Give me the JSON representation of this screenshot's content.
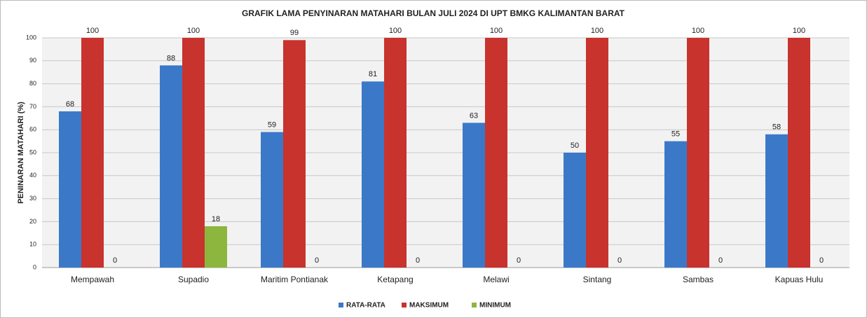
{
  "chart_data": {
    "type": "bar",
    "title": "GRAFIK LAMA PENYINARAN MATAHARI BULAN JULI 2024 DI UPT BMKG KALIMANTAN BARAT",
    "y_label": "PENINARAN MATAHARI (%)",
    "categories": [
      "Mempawah",
      "Supadio",
      "Maritim Pontianak",
      "Ketapang",
      "Melawi",
      "Sintang",
      "Sambas",
      "Kapuas Hulu"
    ],
    "series": [
      {
        "name": "RATA-RATA",
        "color": "#3b79c8",
        "values": [
          68,
          88,
          59,
          81,
          63,
          50,
          55,
          58
        ]
      },
      {
        "name": "MAKSIMUM",
        "color": "#c8332e",
        "values": [
          100,
          100,
          99,
          100,
          100,
          100,
          100,
          100
        ]
      },
      {
        "name": "MINIMUM",
        "color": "#8db63f",
        "values": [
          0,
          18,
          0,
          0,
          0,
          0,
          0,
          0
        ]
      }
    ],
    "ylim": [
      0,
      100
    ],
    "yticks": [
      0,
      10,
      20,
      30,
      40,
      50,
      60,
      70,
      80,
      90,
      100
    ],
    "grid": true,
    "legend": "bottom"
  }
}
